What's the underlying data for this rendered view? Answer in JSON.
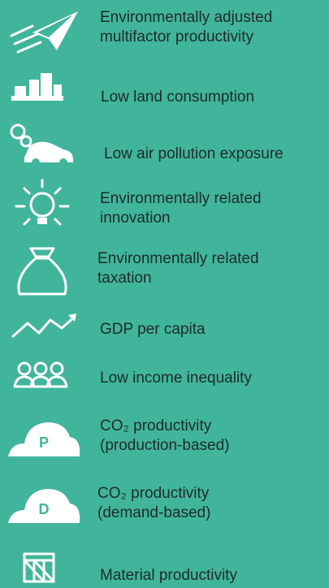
{
  "items": [
    {
      "lines": [
        "Environmentally adjusted",
        "multifactor productivity"
      ]
    },
    {
      "lines": [
        "Low land consumption"
      ]
    },
    {
      "lines": [
        "Low air pollution exposure"
      ]
    },
    {
      "lines": [
        "Environmentally related",
        "innovation"
      ]
    },
    {
      "lines": [
        "Environmentally related",
        "taxation"
      ]
    },
    {
      "lines": [
        "GDP per capita"
      ]
    },
    {
      "lines": [
        "Low income inequality"
      ]
    },
    {
      "lines": [
        "CO₂ productivity",
        "(production-based)"
      ],
      "icon_letter": "P"
    },
    {
      "lines": [
        "CO₂ productivity",
        "(demand-based)"
      ],
      "icon_letter": "D"
    },
    {
      "lines": [
        "Material productivity"
      ]
    }
  ]
}
